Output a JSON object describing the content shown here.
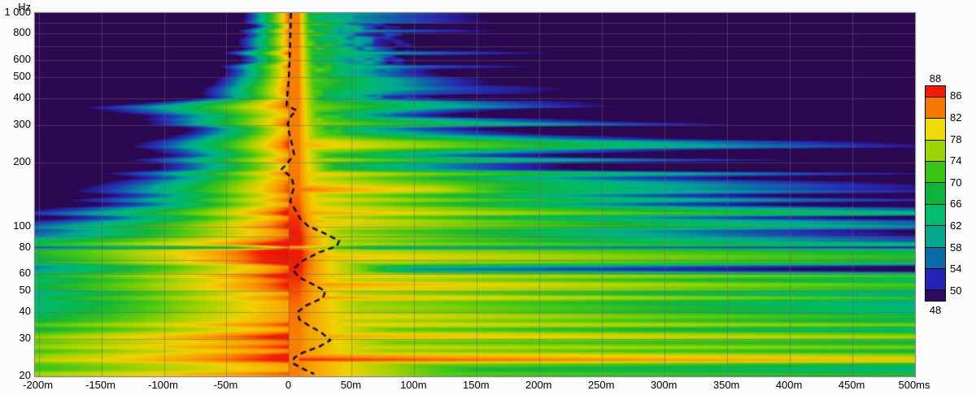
{
  "page": {
    "background": "#fbfbfb"
  },
  "chart_data": {
    "type": "heatmap",
    "subtype": "spectrogram",
    "y_axis": {
      "unit_label": "Hz",
      "scale": "log",
      "min": 20,
      "max": 1000,
      "ticks": [
        {
          "value": 1000,
          "label": "1 000"
        },
        {
          "value": 800,
          "label": "800"
        },
        {
          "value": 600,
          "label": "600"
        },
        {
          "value": 500,
          "label": "500"
        },
        {
          "value": 400,
          "label": "400"
        },
        {
          "value": 300,
          "label": "300"
        },
        {
          "value": 200,
          "label": "200"
        },
        {
          "value": 100,
          "label": "100"
        },
        {
          "value": 80,
          "label": "80"
        },
        {
          "value": 60,
          "label": "60"
        },
        {
          "value": 50,
          "label": "50"
        },
        {
          "value": 40,
          "label": "40"
        },
        {
          "value": 30,
          "label": "30"
        },
        {
          "value": 20,
          "label": "20"
        }
      ],
      "gridlines": [
        900,
        800,
        700,
        600,
        500,
        400,
        300,
        200,
        100,
        90,
        80,
        70,
        60,
        50,
        40,
        30
      ]
    },
    "x_axis": {
      "unit": "ms",
      "min": -203,
      "max": 500,
      "gridline_step": 50,
      "ticks": [
        {
          "value": -200,
          "label": "-200m"
        },
        {
          "value": -150,
          "label": "-150m"
        },
        {
          "value": -100,
          "label": "-100m"
        },
        {
          "value": -50,
          "label": "-50m"
        },
        {
          "value": 0,
          "label": "0"
        },
        {
          "value": 50,
          "label": "50m"
        },
        {
          "value": 100,
          "label": "100m"
        },
        {
          "value": 150,
          "label": "150m"
        },
        {
          "value": 200,
          "label": "200m"
        },
        {
          "value": 250,
          "label": "250m"
        },
        {
          "value": 300,
          "label": "300m"
        },
        {
          "value": 350,
          "label": "350m"
        },
        {
          "value": 400,
          "label": "400m"
        },
        {
          "value": 450,
          "label": "450m"
        },
        {
          "value": 500,
          "label": "500ms"
        }
      ]
    },
    "colorbar": {
      "min_db": 48,
      "max_db": 88,
      "top_label": "88",
      "bottom_label": "48",
      "boundary_labels": [
        "86",
        "82",
        "78",
        "74",
        "70",
        "66",
        "62",
        "58",
        "54",
        "50"
      ],
      "segments": [
        {
          "from": 86,
          "to": 88,
          "color": "#f41c00"
        },
        {
          "from": 82,
          "to": 86,
          "color": "#f47800"
        },
        {
          "from": 78,
          "to": 82,
          "color": "#eedc00"
        },
        {
          "from": 74,
          "to": 78,
          "color": "#9cd400"
        },
        {
          "from": 70,
          "to": 74,
          "color": "#3cc414"
        },
        {
          "from": 66,
          "to": 70,
          "color": "#0cb43c"
        },
        {
          "from": 62,
          "to": 66,
          "color": "#00bc6c"
        },
        {
          "from": 58,
          "to": 62,
          "color": "#00a890"
        },
        {
          "from": 54,
          "to": 58,
          "color": "#0c6ca8"
        },
        {
          "from": 50,
          "to": 54,
          "color": "#2424b4"
        },
        {
          "from": 48,
          "to": 50,
          "color": "#310a5e"
        }
      ]
    },
    "palette_stops": [
      [
        46,
        "#2b0850"
      ],
      [
        48,
        "#2b0850"
      ],
      [
        51,
        "#2a1c96"
      ],
      [
        54,
        "#2434b4"
      ],
      [
        58,
        "#0c6ca8"
      ],
      [
        62,
        "#00a894"
      ],
      [
        66,
        "#00bc6c"
      ],
      [
        70,
        "#14b43c"
      ],
      [
        74,
        "#46c814"
      ],
      [
        78,
        "#a0d200"
      ],
      [
        82,
        "#f0d200"
      ],
      [
        85,
        "#f8a000"
      ],
      [
        86.5,
        "#f87000"
      ],
      [
        88,
        "#f41e00"
      ],
      [
        90,
        "#e81400"
      ]
    ],
    "grid_color": "rgba(100,100,112,0.5)",
    "impulse_trace": {
      "color": "#0a0a0a",
      "style": "dashed",
      "points_ms_hz": [
        [
          1.5,
          1000
        ],
        [
          1.2,
          860
        ],
        [
          0.8,
          700
        ],
        [
          0.2,
          560
        ],
        [
          -0.5,
          470
        ],
        [
          -1.5,
          410
        ],
        [
          -2,
          370
        ],
        [
          6,
          350
        ],
        [
          2,
          332
        ],
        [
          -1,
          305
        ],
        [
          0,
          275
        ],
        [
          2,
          248
        ],
        [
          4,
          218
        ],
        [
          -2,
          196
        ],
        [
          -6,
          186
        ],
        [
          2,
          170
        ],
        [
          4,
          153
        ],
        [
          2,
          141
        ],
        [
          1,
          131
        ],
        [
          5,
          120
        ],
        [
          9,
          109
        ],
        [
          15,
          101
        ],
        [
          27,
          94
        ],
        [
          40,
          86
        ],
        [
          38,
          81
        ],
        [
          24,
          76
        ],
        [
          10,
          69
        ],
        [
          3,
          63
        ],
        [
          8,
          58
        ],
        [
          20,
          53.5
        ],
        [
          29,
          50
        ],
        [
          27,
          46.5
        ],
        [
          14,
          43
        ],
        [
          7,
          40
        ],
        [
          8,
          37
        ],
        [
          16,
          34.5
        ],
        [
          26,
          32
        ],
        [
          33,
          29.5
        ],
        [
          24,
          27.5
        ],
        [
          11,
          25.8
        ],
        [
          4,
          24.4
        ],
        [
          3,
          23
        ],
        [
          11,
          21.7
        ],
        [
          20,
          20.5
        ]
      ]
    },
    "decay_model": {
      "background_db": 46,
      "peak_db": 86,
      "peak_extra_db": 2.5,
      "peak_extra_center_hz": 78,
      "peak_hold_ms": 8,
      "pre_window_slope_db_per_ms_at_20hz": 0.045,
      "pre_window_slope_exponent": 0.85,
      "direct_slope_db_per_ms_at_20hz": 0.1,
      "direct_slope_exponent": 0.75,
      "modal_base_db": 79,
      "modal_slope_db_per_ms_at_20hz": 0.012,
      "modal_slope_exponent": 0.9,
      "modes": [
        {
          "f": 25,
          "boost": 4,
          "w": 0.02
        },
        {
          "f": 31,
          "boost": 6,
          "w": 0.016
        },
        {
          "f": 38,
          "boost": 3.5,
          "w": 0.014
        },
        {
          "f": 47,
          "boost": 3,
          "w": 0.014
        },
        {
          "f": 54,
          "boost": 2.5,
          "w": 0.012
        },
        {
          "f": 72,
          "boost": 5,
          "w": 0.018
        },
        {
          "f": 90,
          "boost": 6,
          "w": 0.018
        },
        {
          "f": 108,
          "boost": 4,
          "w": 0.014
        },
        {
          "f": 126,
          "boost": 3,
          "w": 0.012
        },
        {
          "f": 150,
          "boost": 2,
          "w": 0.012
        },
        {
          "f": 172,
          "boost": 2.5,
          "w": 0.012
        },
        {
          "f": 205,
          "boost": 2,
          "w": 0.012
        },
        {
          "f": 350,
          "boost": 4,
          "w": 0.01
        }
      ],
      "notches": [
        {
          "f": 80,
          "cut": 16,
          "w": 0.008,
          "from_t": null
        },
        {
          "f": 63,
          "cut": 12,
          "w": 0.012,
          "from_t": 60
        },
        {
          "f": 150,
          "cut": 7,
          "w": 0.015,
          "from_t": 120
        }
      ]
    }
  }
}
